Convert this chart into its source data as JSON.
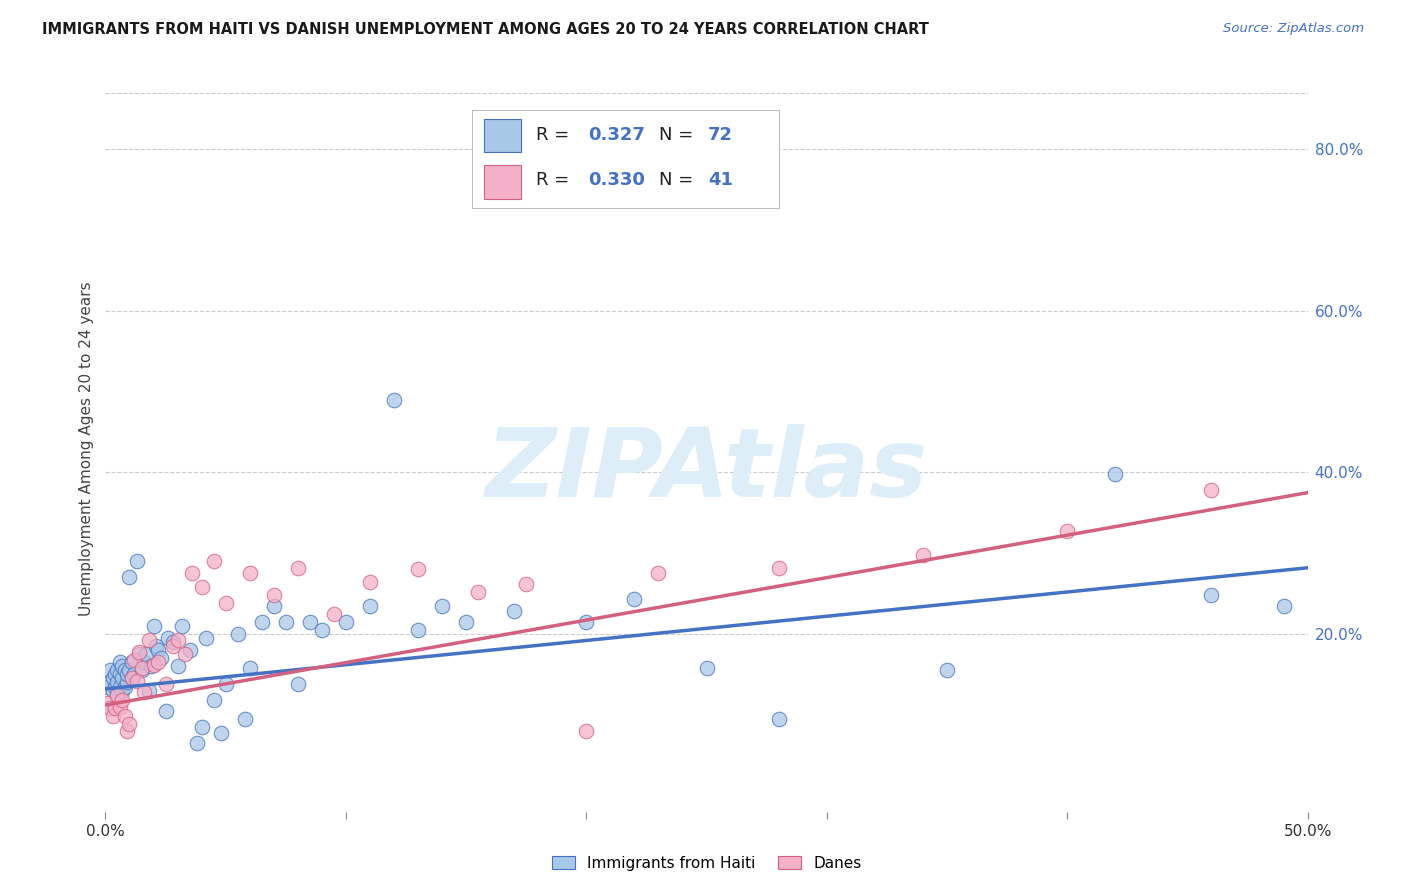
{
  "title": "IMMIGRANTS FROM HAITI VS DANISH UNEMPLOYMENT AMONG AGES 20 TO 24 YEARS CORRELATION CHART",
  "source": "Source: ZipAtlas.com",
  "ylabel": "Unemployment Among Ages 20 to 24 years",
  "xmin": 0.0,
  "xmax": 0.5,
  "ymin": -0.02,
  "ymax": 0.88,
  "yticks_right": [
    0.2,
    0.4,
    0.6,
    0.8
  ],
  "ytick_labels_right": [
    "20.0%",
    "40.0%",
    "60.0%",
    "80.0%"
  ],
  "color_haiti": "#a8c8e8",
  "color_danes": "#f4b0c8",
  "color_line_haiti": "#4472c4",
  "color_line_danes": "#d46080",
  "color_blue": "#4472c4",
  "background_color": "#ffffff",
  "watermark_text": "ZIPAtlas",
  "watermark_color": "#ddeef8",
  "grid_color": "#cccccc",
  "haiti_x": [
    0.001,
    0.002,
    0.002,
    0.003,
    0.003,
    0.004,
    0.004,
    0.005,
    0.005,
    0.005,
    0.006,
    0.006,
    0.006,
    0.007,
    0.007,
    0.007,
    0.008,
    0.008,
    0.009,
    0.009,
    0.01,
    0.01,
    0.011,
    0.011,
    0.012,
    0.013,
    0.014,
    0.015,
    0.016,
    0.017,
    0.018,
    0.019,
    0.02,
    0.021,
    0.022,
    0.023,
    0.025,
    0.026,
    0.028,
    0.03,
    0.032,
    0.035,
    0.038,
    0.04,
    0.042,
    0.045,
    0.048,
    0.05,
    0.055,
    0.058,
    0.06,
    0.065,
    0.07,
    0.075,
    0.08,
    0.085,
    0.09,
    0.1,
    0.11,
    0.12,
    0.13,
    0.14,
    0.15,
    0.17,
    0.2,
    0.22,
    0.25,
    0.28,
    0.35,
    0.42,
    0.46,
    0.49
  ],
  "haiti_y": [
    0.135,
    0.14,
    0.155,
    0.13,
    0.145,
    0.135,
    0.15,
    0.125,
    0.14,
    0.155,
    0.135,
    0.15,
    0.165,
    0.13,
    0.145,
    0.16,
    0.135,
    0.155,
    0.14,
    0.15,
    0.27,
    0.155,
    0.165,
    0.145,
    0.15,
    0.29,
    0.175,
    0.155,
    0.165,
    0.175,
    0.13,
    0.16,
    0.21,
    0.185,
    0.18,
    0.17,
    0.105,
    0.195,
    0.19,
    0.16,
    0.21,
    0.18,
    0.065,
    0.085,
    0.195,
    0.118,
    0.078,
    0.138,
    0.2,
    0.095,
    0.158,
    0.215,
    0.235,
    0.215,
    0.138,
    0.215,
    0.205,
    0.215,
    0.235,
    0.49,
    0.205,
    0.235,
    0.215,
    0.228,
    0.215,
    0.243,
    0.158,
    0.095,
    0.155,
    0.398,
    0.248,
    0.235
  ],
  "danes_x": [
    0.001,
    0.002,
    0.003,
    0.004,
    0.005,
    0.006,
    0.007,
    0.008,
    0.009,
    0.01,
    0.011,
    0.012,
    0.013,
    0.014,
    0.015,
    0.016,
    0.018,
    0.02,
    0.022,
    0.025,
    0.028,
    0.03,
    0.033,
    0.036,
    0.04,
    0.045,
    0.05,
    0.06,
    0.07,
    0.08,
    0.095,
    0.11,
    0.13,
    0.155,
    0.175,
    0.2,
    0.23,
    0.28,
    0.34,
    0.4,
    0.46
  ],
  "danes_y": [
    0.115,
    0.108,
    0.098,
    0.108,
    0.125,
    0.11,
    0.118,
    0.098,
    0.08,
    0.088,
    0.145,
    0.168,
    0.142,
    0.178,
    0.158,
    0.128,
    0.192,
    0.162,
    0.165,
    0.138,
    0.185,
    0.192,
    0.175,
    0.275,
    0.258,
    0.29,
    0.238,
    0.275,
    0.248,
    0.282,
    0.225,
    0.265,
    0.28,
    0.252,
    0.262,
    0.08,
    0.275,
    0.282,
    0.298,
    0.328,
    0.378
  ],
  "haiti_trend_y_start": 0.132,
  "haiti_trend_y_end": 0.282,
  "danes_trend_y_start": 0.112,
  "danes_trend_y_end": 0.375
}
